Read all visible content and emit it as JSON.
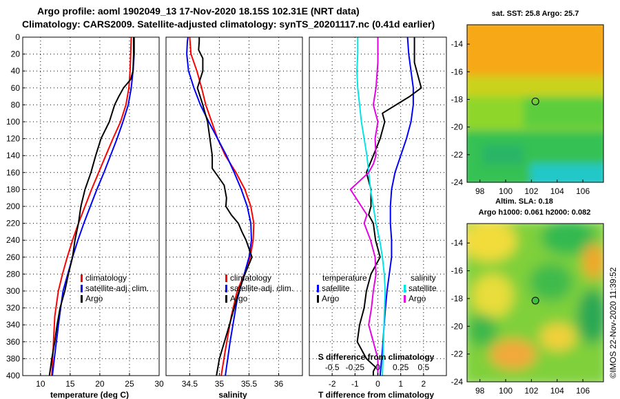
{
  "header": {
    "line1": "Argo profile: aoml 1902049_13 17-Nov-2020 18.15S 102.31E (NRT data)",
    "line2": "Climatology: CARS2009. Satellite-adjusted climatology: synTS_20201117.nc (0.41d earlier)"
  },
  "colors": {
    "climatology": "#ff0000",
    "satellite": "#0000ff",
    "argo": "#000000",
    "sat_salinity": "#00e5e5",
    "argo_salinity": "#e600e6"
  },
  "chart_data": [
    {
      "type": "line",
      "name": "temperature-profile",
      "xlabel": "temperature (deg C)",
      "ylabel": "",
      "xlim": [
        7,
        30
      ],
      "ylim": [
        400,
        0
      ],
      "xticks": [
        "10",
        "15",
        "20",
        "25",
        "30"
      ],
      "xtick_values": [
        10,
        15,
        20,
        25,
        30
      ],
      "yticks": [
        "0",
        "20",
        "40",
        "60",
        "80",
        "100",
        "120",
        "140",
        "160",
        "180",
        "200",
        "220",
        "240",
        "260",
        "280",
        "300",
        "320",
        "340",
        "360",
        "380",
        "400"
      ],
      "ytick_values": [
        0,
        20,
        40,
        60,
        80,
        100,
        120,
        140,
        160,
        180,
        200,
        220,
        240,
        260,
        280,
        300,
        320,
        340,
        360,
        380,
        400
      ],
      "legend": [
        "climatology",
        "satellite-adj. clim.",
        "Argo"
      ],
      "series": [
        {
          "name": "climatology",
          "color": "#ff0000",
          "x": [
            25.3,
            25.2,
            25.1,
            24.9,
            24.4,
            23.5,
            22.2,
            21.0,
            19.8,
            18.6,
            17.5,
            16.4,
            15.4,
            14.5,
            13.7,
            13.0,
            12.4,
            11.9
          ],
          "depth": [
            0,
            20,
            40,
            60,
            80,
            100,
            120,
            140,
            160,
            180,
            200,
            220,
            240,
            260,
            280,
            300,
            330,
            400
          ]
        },
        {
          "name": "satellite-adj. clim.",
          "color": "#0000ff",
          "x": [
            25.8,
            25.8,
            25.6,
            25.3,
            24.8,
            23.9,
            22.9,
            21.8,
            20.7,
            19.5,
            18.4,
            17.3,
            16.3,
            15.4,
            14.6,
            13.8,
            13.2,
            12.5,
            12.0
          ],
          "depth": [
            0,
            20,
            40,
            60,
            80,
            100,
            120,
            140,
            160,
            180,
            200,
            220,
            240,
            260,
            280,
            300,
            330,
            370,
            400
          ]
        },
        {
          "name": "Argo",
          "color": "#000000",
          "x": [
            25.7,
            25.7,
            25.6,
            25.2,
            24.0,
            23.2,
            22.5,
            21.6,
            20.2,
            19.3,
            18.5,
            17.5,
            16.8,
            16.4,
            15.8,
            15.4,
            14.7,
            14.1,
            13.3,
            12.8,
            12.4,
            11.9,
            11.7,
            11.5
          ],
          "depth": [
            0,
            20,
            40,
            50,
            60,
            70,
            80,
            100,
            120,
            140,
            160,
            180,
            200,
            220,
            240,
            260,
            280,
            300,
            320,
            340,
            360,
            380,
            390,
            400
          ]
        }
      ]
    },
    {
      "type": "line",
      "name": "salinity-profile",
      "xlabel": "salinity",
      "ylabel": "",
      "xlim": [
        34.1,
        36.4
      ],
      "ylim": [
        400,
        0
      ],
      "xticks": [
        "34.5",
        "35",
        "35.5",
        "36"
      ],
      "xtick_values": [
        34.5,
        35,
        35.5,
        36
      ],
      "legend": [
        "climatology",
        "satellite-adj. clim.",
        "Argo"
      ],
      "series": [
        {
          "name": "climatology",
          "color": "#ff0000",
          "x": [
            34.5,
            34.52,
            34.62,
            34.7,
            34.77,
            34.87,
            34.97,
            35.1,
            35.28,
            35.43,
            35.53,
            35.58,
            35.57,
            35.52,
            35.42,
            35.3,
            35.2,
            35.1,
            35.03
          ],
          "depth": [
            0,
            20,
            40,
            60,
            80,
            100,
            120,
            140,
            160,
            180,
            200,
            220,
            240,
            260,
            280,
            300,
            330,
            370,
            400
          ]
        },
        {
          "name": "satellite-adj. clim.",
          "color": "#0000ff",
          "x": [
            34.47,
            34.46,
            34.45,
            34.48,
            34.57,
            34.68,
            34.82,
            34.97,
            35.12,
            35.25,
            35.37,
            35.47,
            35.53,
            35.54,
            35.5,
            35.42,
            35.3,
            35.18,
            35.1
          ],
          "depth": [
            0,
            5,
            20,
            40,
            60,
            80,
            100,
            120,
            140,
            160,
            180,
            200,
            220,
            240,
            260,
            280,
            310,
            360,
            400
          ]
        },
        {
          "name": "Argo",
          "color": "#000000",
          "x": [
            34.66,
            34.66,
            34.65,
            34.72,
            34.72,
            34.63,
            34.72,
            34.8,
            34.84,
            34.88,
            34.88,
            34.98,
            35.08,
            35.12,
            35.11,
            35.2,
            35.32,
            35.38,
            35.45,
            35.5,
            35.55,
            35.43,
            35.33,
            35.17,
            35.0,
            34.95
          ],
          "depth": [
            0,
            5,
            15,
            25,
            40,
            60,
            80,
            100,
            120,
            140,
            155,
            165,
            175,
            190,
            200,
            210,
            220,
            230,
            240,
            250,
            260,
            280,
            300,
            340,
            380,
            400
          ]
        }
      ]
    },
    {
      "type": "line",
      "name": "difference-from-climatology",
      "xlabel": "T difference from climatology",
      "x2label": "S difference from climatology",
      "xlim": [
        -3.0,
        3.0
      ],
      "ylim": [
        400,
        0
      ],
      "xticks": [
        "-2",
        "-1",
        "0",
        "1",
        "2"
      ],
      "xtick_values": [
        -2,
        -1,
        0,
        1,
        2
      ],
      "x2ticks": [
        "-0.5",
        "-0.25",
        "0",
        "0.25",
        "0.5"
      ],
      "x2tick_values": [
        -0.5,
        -0.25,
        0,
        0.25,
        0.5
      ],
      "legend_temperature": {
        "heading": "temperature",
        "items": [
          "satellite",
          "Argo"
        ]
      },
      "legend_salinity": {
        "heading": "salinity",
        "items": [
          "satellite",
          "Argo"
        ]
      },
      "series": [
        {
          "name": "T satellite",
          "color": "#0000ff",
          "x": [
            1.3,
            1.35,
            1.45,
            1.55,
            1.55,
            1.45,
            1.25,
            1.0,
            0.75,
            0.6,
            0.55,
            0.55,
            0.6,
            0.6,
            0.5,
            0.4,
            0.3,
            0.2,
            0.1
          ],
          "depth": [
            0,
            20,
            40,
            60,
            80,
            100,
            120,
            140,
            160,
            180,
            200,
            220,
            240,
            260,
            280,
            300,
            330,
            370,
            400
          ]
        },
        {
          "name": "T Argo",
          "color": "#000000",
          "x": [
            1.6,
            1.6,
            1.8,
            1.9,
            1.4,
            0.8,
            0.2,
            0.3,
            0.1,
            -0.2,
            -0.5,
            -0.3,
            -0.3,
            -0.4,
            -0.2,
            -0.1,
            0.1,
            -0.3,
            -0.5,
            -0.6,
            -0.8,
            -0.9,
            -0.7,
            -0.5,
            -0.1,
            -0.2,
            -0.2
          ],
          "depth": [
            0,
            30,
            50,
            60,
            70,
            80,
            90,
            100,
            120,
            140,
            160,
            180,
            200,
            210,
            220,
            240,
            260,
            280,
            300,
            320,
            340,
            360,
            370,
            380,
            390,
            395,
            400
          ]
        },
        {
          "name": "S satellite",
          "color": "#00e5e5",
          "x": [
            -0.22,
            -0.22,
            -0.23,
            -0.22,
            -0.2,
            -0.18,
            -0.15,
            -0.12,
            -0.1,
            -0.08,
            -0.05,
            -0.02,
            0.02,
            0.05,
            0.07,
            0.08,
            0.07,
            0.05
          ],
          "depth": [
            0,
            20,
            40,
            60,
            80,
            100,
            120,
            140,
            160,
            180,
            200,
            220,
            240,
            260,
            280,
            300,
            330,
            400
          ]
        },
        {
          "name": "S Argo",
          "color": "#e600e6",
          "x": [
            0.0,
            0.0,
            -0.02,
            -0.05,
            0.0,
            -0.03,
            -0.02,
            -0.05,
            -0.1,
            -0.2,
            -0.3,
            -0.18,
            -0.12,
            -0.15,
            -0.08,
            -0.03,
            -0.02,
            -0.05,
            -0.07,
            -0.1,
            -0.05,
            0.0,
            0.0
          ],
          "depth": [
            0,
            30,
            60,
            80,
            100,
            120,
            140,
            150,
            160,
            170,
            180,
            200,
            210,
            220,
            240,
            260,
            280,
            300,
            320,
            340,
            360,
            380,
            400
          ]
        }
      ]
    },
    {
      "type": "heatmap",
      "name": "sst-map",
      "title": "sat. SST: 25.8 Argo: 25.7",
      "xlim": [
        97,
        107.6
      ],
      "ylim": [
        -24,
        -12.6
      ],
      "xticks": [
        "98",
        "100",
        "102",
        "104",
        "106"
      ],
      "xtick_values": [
        98,
        100,
        102,
        104,
        106
      ],
      "yticks": [
        "-14",
        "-16",
        "-18",
        "-20",
        "-22",
        "-24"
      ],
      "ytick_values": [
        -14,
        -16,
        -18,
        -20,
        -22,
        -24
      ],
      "marker": {
        "lon": 102.31,
        "lat": -18.15
      },
      "regions": [
        "warm orange in north",
        "yellow-green band near 17S",
        "green south of 19S",
        "cyan patch near 24S"
      ]
    },
    {
      "type": "heatmap",
      "name": "sla-map",
      "title_line1": "Altim. SLA: 0.18",
      "title_line2": "Argo h1000: 0.061 h2000: 0.082",
      "xlim": [
        97,
        107.6
      ],
      "ylim": [
        -24,
        -12.6
      ],
      "xticks": [
        "98",
        "100",
        "102",
        "104",
        "106"
      ],
      "xtick_values": [
        98,
        100,
        102,
        104,
        106
      ],
      "yticks": [
        "-14",
        "-16",
        "-18",
        "-20",
        "-22",
        "-24"
      ],
      "ytick_values": [
        -14,
        -16,
        -18,
        -20,
        -22,
        -24
      ],
      "marker": {
        "lon": 102.31,
        "lat": -18.15
      }
    }
  ],
  "credit": "©IMOS 22-Nov-2020 11:39:52"
}
